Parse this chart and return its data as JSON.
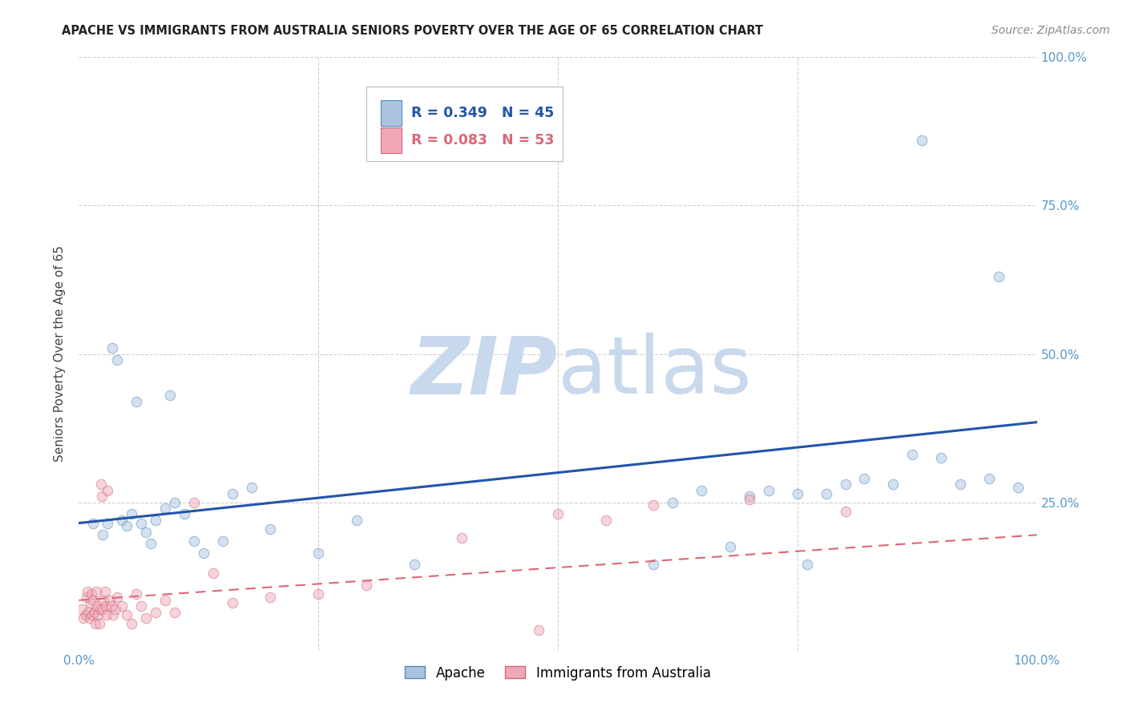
{
  "title": "APACHE VS IMMIGRANTS FROM AUSTRALIA SENIORS POVERTY OVER THE AGE OF 65 CORRELATION CHART",
  "source": "Source: ZipAtlas.com",
  "ylabel": "Seniors Poverty Over the Age of 65",
  "xlim": [
    0,
    1.0
  ],
  "ylim": [
    0,
    1.0
  ],
  "background_color": "#ffffff",
  "grid_color": "#d0d0d0",
  "watermark_zip": "ZIP",
  "watermark_atlas": "atlas",
  "watermark_color_zip": "#c8d8ed",
  "watermark_color_atlas": "#c8d8ed",
  "apache_color": "#aac4e0",
  "apache_edge_color": "#5588bb",
  "australia_color": "#f0a8b8",
  "australia_edge_color": "#cc6677",
  "apache_R": "0.349",
  "apache_N": "45",
  "australia_R": "0.083",
  "australia_N": "53",
  "legend_label_apache": "Apache",
  "legend_label_australia": "Immigrants from Australia",
  "apache_line_color": "#2255aa",
  "australia_line_color": "#dd6677",
  "apache_line_y0": 0.215,
  "apache_line_y1": 0.385,
  "australia_line_y0": 0.085,
  "australia_line_y1": 0.195,
  "apache_scatter_x": [
    0.015,
    0.025,
    0.03,
    0.035,
    0.04,
    0.045,
    0.05,
    0.055,
    0.06,
    0.065,
    0.07,
    0.075,
    0.08,
    0.09,
    0.095,
    0.1,
    0.11,
    0.12,
    0.13,
    0.15,
    0.16,
    0.18,
    0.2,
    0.25,
    0.29,
    0.35,
    0.6,
    0.62,
    0.65,
    0.68,
    0.7,
    0.72,
    0.75,
    0.76,
    0.78,
    0.8,
    0.82,
    0.85,
    0.87,
    0.88,
    0.9,
    0.92,
    0.95,
    0.96,
    0.98
  ],
  "apache_scatter_y": [
    0.215,
    0.195,
    0.215,
    0.51,
    0.49,
    0.22,
    0.21,
    0.23,
    0.42,
    0.215,
    0.2,
    0.18,
    0.22,
    0.24,
    0.43,
    0.25,
    0.23,
    0.185,
    0.165,
    0.185,
    0.265,
    0.275,
    0.205,
    0.165,
    0.22,
    0.145,
    0.145,
    0.25,
    0.27,
    0.175,
    0.26,
    0.27,
    0.265,
    0.145,
    0.265,
    0.28,
    0.29,
    0.28,
    0.33,
    0.86,
    0.325,
    0.28,
    0.29,
    0.63,
    0.275
  ],
  "australia_scatter_x": [
    0.003,
    0.005,
    0.007,
    0.008,
    0.009,
    0.01,
    0.011,
    0.012,
    0.013,
    0.014,
    0.015,
    0.016,
    0.017,
    0.018,
    0.019,
    0.02,
    0.021,
    0.022,
    0.023,
    0.024,
    0.025,
    0.026,
    0.027,
    0.028,
    0.029,
    0.03,
    0.032,
    0.034,
    0.036,
    0.038,
    0.04,
    0.045,
    0.05,
    0.055,
    0.06,
    0.065,
    0.07,
    0.08,
    0.09,
    0.1,
    0.12,
    0.14,
    0.16,
    0.2,
    0.25,
    0.3,
    0.4,
    0.5,
    0.55,
    0.6,
    0.7,
    0.8,
    0.48
  ],
  "australia_scatter_y": [
    0.07,
    0.055,
    0.06,
    0.09,
    0.1,
    0.065,
    0.055,
    0.08,
    0.095,
    0.06,
    0.085,
    0.065,
    0.045,
    0.1,
    0.075,
    0.06,
    0.045,
    0.07,
    0.28,
    0.26,
    0.07,
    0.085,
    0.1,
    0.075,
    0.06,
    0.27,
    0.085,
    0.075,
    0.06,
    0.07,
    0.09,
    0.075,
    0.06,
    0.045,
    0.095,
    0.075,
    0.055,
    0.065,
    0.085,
    0.065,
    0.25,
    0.13,
    0.08,
    0.09,
    0.095,
    0.11,
    0.19,
    0.23,
    0.22,
    0.245,
    0.255,
    0.235,
    0.035
  ],
  "title_fontsize": 10.5,
  "axis_label_fontsize": 11,
  "tick_fontsize": 11,
  "source_fontsize": 10,
  "marker_size": 9,
  "marker_alpha": 0.5,
  "right_ytick_color": "#5599cc"
}
